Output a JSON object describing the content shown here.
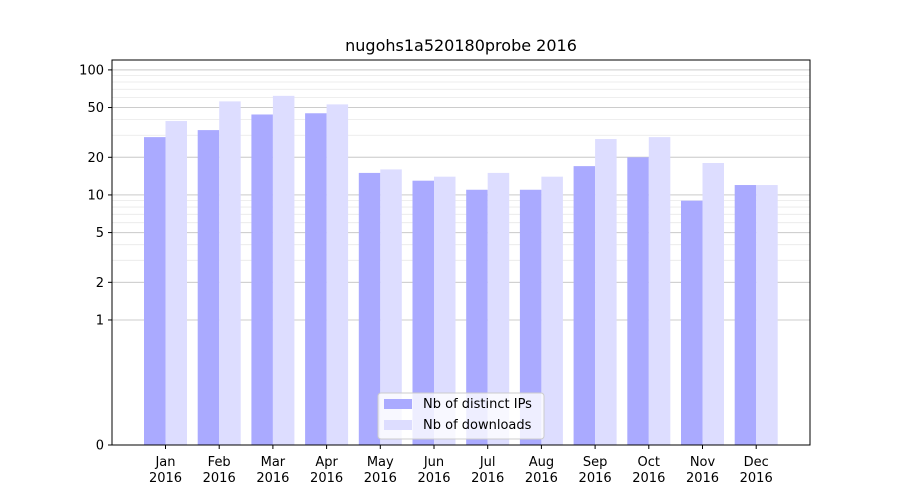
{
  "chart_data": {
    "type": "bar",
    "title": "nugohs1a520180probe 2016",
    "xlabel": "",
    "ylabel": "",
    "categories": [
      "Jan\n2016",
      "Feb\n2016",
      "Mar\n2016",
      "Apr\n2016",
      "May\n2016",
      "Jun\n2016",
      "Jul\n2016",
      "Aug\n2016",
      "Sep\n2016",
      "Oct\n2016",
      "Nov\n2016",
      "Dec\n2016"
    ],
    "series": [
      {
        "name": "Nb of distinct IPs",
        "color": "#aaaaff",
        "values": [
          29,
          33,
          44,
          45,
          15,
          13,
          11,
          11,
          17,
          20,
          9,
          12
        ]
      },
      {
        "name": "Nb of downloads",
        "color": "#ddddff",
        "values": [
          39,
          56,
          62,
          53,
          16,
          14,
          15,
          14,
          28,
          29,
          18,
          12
        ]
      }
    ],
    "y_scale": "symlog",
    "ylim": [
      0,
      120
    ],
    "y_ticks": [
      0,
      1,
      2,
      5,
      10,
      20,
      50,
      100
    ],
    "y_tick_labels": [
      "0",
      "1",
      "2",
      "5",
      "10",
      "20",
      "50",
      "100"
    ],
    "grid": true,
    "legend_position": "lower-center"
  }
}
